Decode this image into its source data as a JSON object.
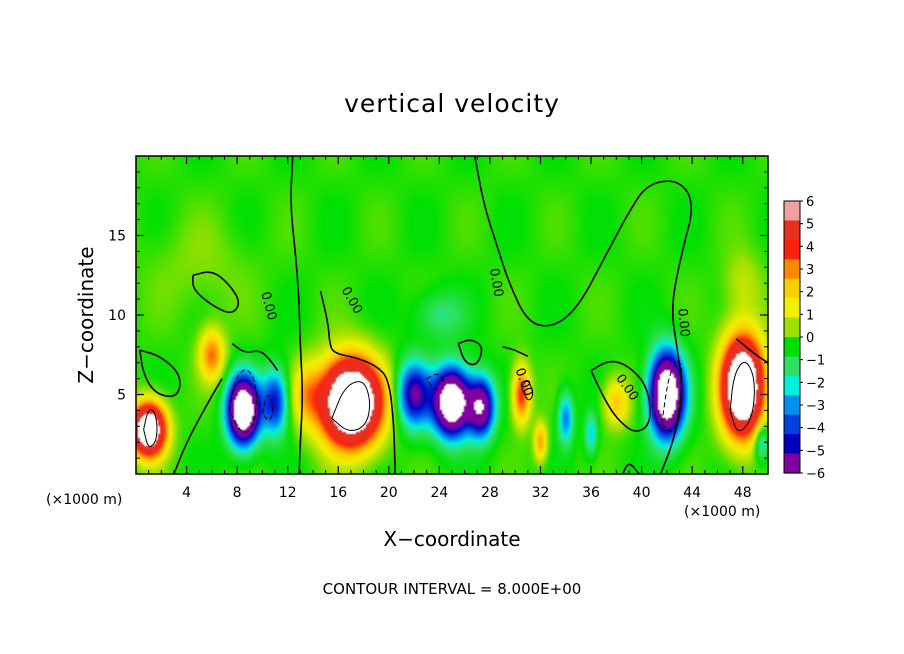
{
  "chart_data": {
    "type": "heatmap",
    "title": "vertical velocity",
    "xlabel": "X−coordinate",
    "ylabel": "Z−coordinate",
    "x_unit": "(×1000 m)",
    "y_unit": "(×1000 m)",
    "xlim": [
      0,
      50
    ],
    "ylim": [
      0,
      20
    ],
    "x_ticks": [
      4,
      8,
      12,
      16,
      20,
      24,
      28,
      32,
      36,
      40,
      44,
      48
    ],
    "y_ticks": [
      5,
      10,
      15
    ],
    "colorbar": {
      "min": -6,
      "max": 6,
      "ticks": [
        6,
        5,
        4,
        3,
        2,
        1,
        0,
        -1,
        -2,
        -3,
        -4,
        -5,
        -6
      ],
      "tick_labels": [
        "6",
        "5",
        "4",
        "3",
        "2",
        "1",
        "0",
        "−1",
        "−2",
        "−3",
        "−4",
        "−5",
        "−6"
      ],
      "colors": [
        "#f0a0a0",
        "#e83020",
        "#ff2010",
        "#ff8800",
        "#ffd000",
        "#f0f000",
        "#a0e000",
        "#00e000",
        "#30e060",
        "#00f0e0",
        "#0090f0",
        "#0040e0",
        "#0000c0",
        "#8000a0"
      ]
    },
    "contour_label": "0.00",
    "footnote": "CONTOUR INTERVAL = 8.000E+00",
    "features": [
      {
        "x": 1.0,
        "z": 2.8,
        "value": 12,
        "sx": 1.3,
        "sz": 1.6
      },
      {
        "x": 6.0,
        "z": 7.5,
        "value": 4,
        "sx": 1.0,
        "sz": 1.6
      },
      {
        "x": 8.5,
        "z": 4.0,
        "value": -12,
        "sx": 1.2,
        "sz": 2.0
      },
      {
        "x": 11.0,
        "z": 4.5,
        "value": -5,
        "sx": 1.0,
        "sz": 2.0
      },
      {
        "x": 13.5,
        "z": 5.0,
        "value": 2.5,
        "sx": 1.2,
        "sz": 2.0
      },
      {
        "x": 17.0,
        "z": 4.5,
        "value": 14,
        "sx": 2.3,
        "sz": 2.6
      },
      {
        "x": 22.0,
        "z": 5.0,
        "value": -6,
        "sx": 1.3,
        "sz": 2.0
      },
      {
        "x": 25.0,
        "z": 4.5,
        "value": -12,
        "sx": 1.4,
        "sz": 2.0
      },
      {
        "x": 27.3,
        "z": 4.2,
        "value": -8,
        "sx": 1.0,
        "sz": 1.8
      },
      {
        "x": 30.5,
        "z": 5.0,
        "value": 5,
        "sx": 0.7,
        "sz": 1.8
      },
      {
        "x": 32.0,
        "z": 2.0,
        "value": 3.5,
        "sx": 0.5,
        "sz": 1.2
      },
      {
        "x": 34.0,
        "z": 3.5,
        "value": -3.5,
        "sx": 0.6,
        "sz": 1.6
      },
      {
        "x": 36.0,
        "z": 2.5,
        "value": -2.5,
        "sx": 0.5,
        "sz": 1.3
      },
      {
        "x": 38.0,
        "z": 4.5,
        "value": 3,
        "sx": 1.0,
        "sz": 1.5
      },
      {
        "x": 42.0,
        "z": 5.0,
        "value": -12,
        "sx": 1.3,
        "sz": 2.5
      },
      {
        "x": 48.0,
        "z": 5.5,
        "value": 13,
        "sx": 1.6,
        "sz": 3.0
      },
      {
        "x": 49.5,
        "z": 2.0,
        "value": -3,
        "sx": 0.6,
        "sz": 1.2
      },
      {
        "x": 24.0,
        "z": 10.0,
        "value": -1.5,
        "sx": 2.0,
        "sz": 1.5
      },
      {
        "x": 5.0,
        "z": 13.0,
        "value": 0.6,
        "sx": 4.0,
        "sz": 3.0
      },
      {
        "x": 48.0,
        "z": 12.0,
        "value": 1.2,
        "sx": 1.5,
        "sz": 2.0
      }
    ],
    "zero_contours": [
      [
        [
          12.4,
          20
        ],
        [
          12.2,
          17
        ],
        [
          12.6,
          14
        ],
        [
          12.9,
          11
        ],
        [
          13.0,
          8
        ],
        [
          13.2,
          5
        ],
        [
          13.0,
          2
        ],
        [
          12.9,
          0
        ]
      ],
      [
        [
          26.8,
          20
        ],
        [
          27.5,
          17
        ],
        [
          28.5,
          14.5
        ],
        [
          29.5,
          12
        ],
        [
          31.0,
          9.5
        ],
        [
          33.0,
          9.2
        ],
        [
          35.0,
          10.5
        ],
        [
          37.0,
          13.5
        ],
        [
          39.0,
          16.5
        ],
        [
          40.5,
          18.3
        ],
        [
          43.0,
          18.5
        ],
        [
          44.2,
          17
        ],
        [
          43.2,
          14
        ],
        [
          42.3,
          10.5
        ],
        [
          42.8,
          8
        ],
        [
          43.3,
          5
        ],
        [
          42.5,
          2
        ],
        [
          41.5,
          0
        ]
      ],
      [
        [
          4.5,
          12.5
        ],
        [
          6.0,
          12.8
        ],
        [
          7.3,
          12.0
        ],
        [
          8.3,
          10.8
        ],
        [
          7.6,
          10.0
        ],
        [
          6.0,
          10.6
        ],
        [
          4.5,
          11.6
        ],
        [
          4.5,
          12.5
        ]
      ],
      [
        [
          0.3,
          7.8
        ],
        [
          2.0,
          7.4
        ],
        [
          3.6,
          6.2
        ],
        [
          3.3,
          4.8
        ],
        [
          1.6,
          5.0
        ],
        [
          0.6,
          6.2
        ],
        [
          0.3,
          7.8
        ]
      ],
      [
        [
          14.6,
          11.5
        ],
        [
          15.2,
          9.5
        ],
        [
          15.3,
          8.3
        ],
        [
          15.6,
          7.6
        ],
        [
          17.5,
          7.3
        ],
        [
          19.0,
          6.8
        ],
        [
          20.0,
          6.0
        ],
        [
          20.4,
          3.2
        ],
        [
          20.5,
          0
        ]
      ],
      [
        [
          7.6,
          8.2
        ],
        [
          8.6,
          7.6
        ],
        [
          9.8,
          7.8
        ],
        [
          10.6,
          7.2
        ],
        [
          11.2,
          6.5
        ]
      ],
      [
        [
          25.5,
          8.2
        ],
        [
          26.0,
          7.0
        ],
        [
          27.0,
          6.8
        ],
        [
          27.5,
          8.0
        ],
        [
          26.5,
          8.5
        ],
        [
          25.5,
          8.2
        ]
      ],
      [
        [
          29.0,
          8.0
        ],
        [
          30.0,
          7.8
        ],
        [
          31.0,
          7.4
        ]
      ],
      [
        [
          36.0,
          6.5
        ],
        [
          37.5,
          7.2
        ],
        [
          39.0,
          6.8
        ],
        [
          40.5,
          5.5
        ],
        [
          40.8,
          3.2
        ],
        [
          39.5,
          2.5
        ],
        [
          38.0,
          3.5
        ],
        [
          37.0,
          4.8
        ],
        [
          36.0,
          6.5
        ]
      ],
      [
        [
          47.5,
          8.5
        ],
        [
          49.0,
          7.5
        ],
        [
          50,
          7.0
        ]
      ],
      [
        [
          38.5,
          0
        ],
        [
          39.0,
          0.8
        ],
        [
          39.8,
          0
        ]
      ],
      [
        [
          3.0,
          0
        ],
        [
          4.0,
          2.0
        ],
        [
          5.5,
          4.2
        ],
        [
          6.8,
          6.0
        ]
      ]
    ],
    "thin_contours": [
      [
        [
          0.6,
          2.8
        ],
        [
          1.0,
          1.5
        ],
        [
          1.7,
          2.2
        ],
        [
          1.6,
          3.8
        ],
        [
          1.0,
          4.2
        ],
        [
          0.6,
          2.8
        ]
      ],
      [
        [
          15.5,
          3.5
        ],
        [
          16.5,
          5.5
        ],
        [
          18.0,
          6.0
        ],
        [
          18.6,
          4.5
        ],
        [
          18.2,
          3.0
        ],
        [
          16.8,
          2.6
        ],
        [
          15.5,
          3.5
        ]
      ],
      [
        [
          47.0,
          4.0
        ],
        [
          47.3,
          6.3
        ],
        [
          48.2,
          7.3
        ],
        [
          49.0,
          6.0
        ],
        [
          48.8,
          3.5
        ],
        [
          47.6,
          2.4
        ],
        [
          47.0,
          4.0
        ]
      ],
      [
        [
          30.5,
          5.5
        ],
        [
          31.0,
          4.5
        ],
        [
          31.5,
          5.0
        ],
        [
          31.0,
          6.0
        ],
        [
          30.5,
          5.5
        ]
      ]
    ],
    "dashed_contours": [
      [
        [
          7.4,
          4.0
        ],
        [
          7.8,
          6.0
        ],
        [
          8.8,
          6.8
        ],
        [
          9.6,
          5.5
        ],
        [
          9.4,
          3.0
        ],
        [
          8.4,
          2.4
        ],
        [
          7.4,
          4.0
        ]
      ],
      [
        [
          10.0,
          3.8
        ],
        [
          10.4,
          5.2
        ],
        [
          10.9,
          4.3
        ],
        [
          10.6,
          3.2
        ],
        [
          10.0,
          3.8
        ]
      ],
      [
        [
          41.6,
          3.2
        ],
        [
          42.2,
          6.5
        ],
        [
          43.2,
          7.4
        ],
        [
          43.1,
          4.5
        ],
        [
          42.5,
          2.4
        ],
        [
          41.6,
          3.2
        ]
      ],
      [
        [
          23.0,
          6.0
        ],
        [
          24.0,
          6.4
        ],
        [
          24.5,
          5.5
        ],
        [
          23.6,
          5.2
        ],
        [
          23.0,
          6.0
        ]
      ]
    ],
    "contour_label_positions": [
      {
        "x": 10.2,
        "z": 10.5,
        "angle": 75
      },
      {
        "x": 16.8,
        "z": 10.8,
        "angle": 60
      },
      {
        "x": 28.2,
        "z": 12.0,
        "angle": 80
      },
      {
        "x": 30.4,
        "z": 5.7,
        "angle": 70
      },
      {
        "x": 38.6,
        "z": 5.3,
        "angle": 55
      },
      {
        "x": 43.0,
        "z": 9.5,
        "angle": 85
      }
    ]
  }
}
